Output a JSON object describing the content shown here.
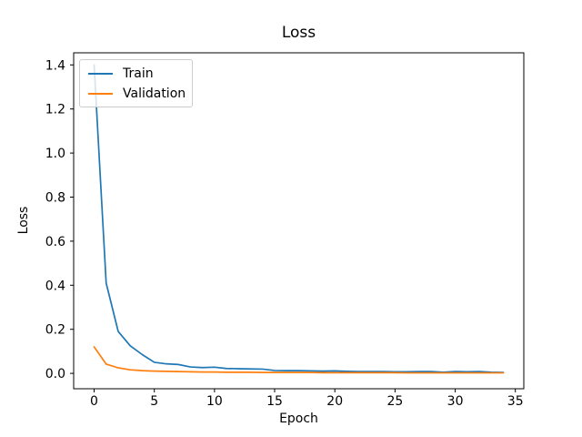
{
  "window": {
    "background_color": "#ffffff"
  },
  "chart_data": {
    "type": "line",
    "title": "Loss",
    "xlabel": "Epoch",
    "ylabel": "Loss",
    "x": [
      0,
      1,
      2,
      3,
      4,
      5,
      6,
      7,
      8,
      9,
      10,
      11,
      12,
      13,
      14,
      15,
      16,
      17,
      18,
      19,
      20,
      21,
      22,
      23,
      24,
      25,
      26,
      27,
      28,
      29,
      30,
      31,
      32,
      33,
      34
    ],
    "series": [
      {
        "name": "Train",
        "color": "#1f77b4",
        "values": [
          1.4,
          0.41,
          0.19,
          0.125,
          0.085,
          0.05,
          0.043,
          0.04,
          0.029,
          0.026,
          0.028,
          0.022,
          0.021,
          0.02,
          0.019,
          0.013,
          0.012,
          0.012,
          0.011,
          0.01,
          0.011,
          0.009,
          0.008,
          0.008,
          0.008,
          0.007,
          0.007,
          0.008,
          0.008,
          0.005,
          0.008,
          0.007,
          0.008,
          0.005,
          0.004
        ]
      },
      {
        "name": "Validation",
        "color": "#ff7f0e",
        "values": [
          0.12,
          0.042,
          0.025,
          0.016,
          0.012,
          0.01,
          0.009,
          0.008,
          0.007,
          0.006,
          0.006,
          0.005,
          0.005,
          0.005,
          0.004,
          0.004,
          0.004,
          0.004,
          0.004,
          0.003,
          0.003,
          0.003,
          0.003,
          0.003,
          0.003,
          0.003,
          0.002,
          0.002,
          0.002,
          0.002,
          0.002,
          0.002,
          0.002,
          0.002,
          0.002
        ]
      }
    ],
    "xticks": [
      0,
      5,
      10,
      15,
      20,
      25,
      30,
      35
    ],
    "yticks": [
      0.0,
      0.2,
      0.4,
      0.6,
      0.8,
      1.0,
      1.2,
      1.4
    ],
    "xlim": [
      -1.7,
      35.7
    ],
    "ylim": [
      -0.07,
      1.455
    ],
    "grid": false,
    "legend_position": "upper left",
    "legend": {
      "entries": [
        {
          "label": "Train",
          "color": "#1f77b4"
        },
        {
          "label": "Validation",
          "color": "#ff7f0e"
        }
      ]
    },
    "axis_color": "#000000",
    "tick_label_color": "#000000"
  }
}
